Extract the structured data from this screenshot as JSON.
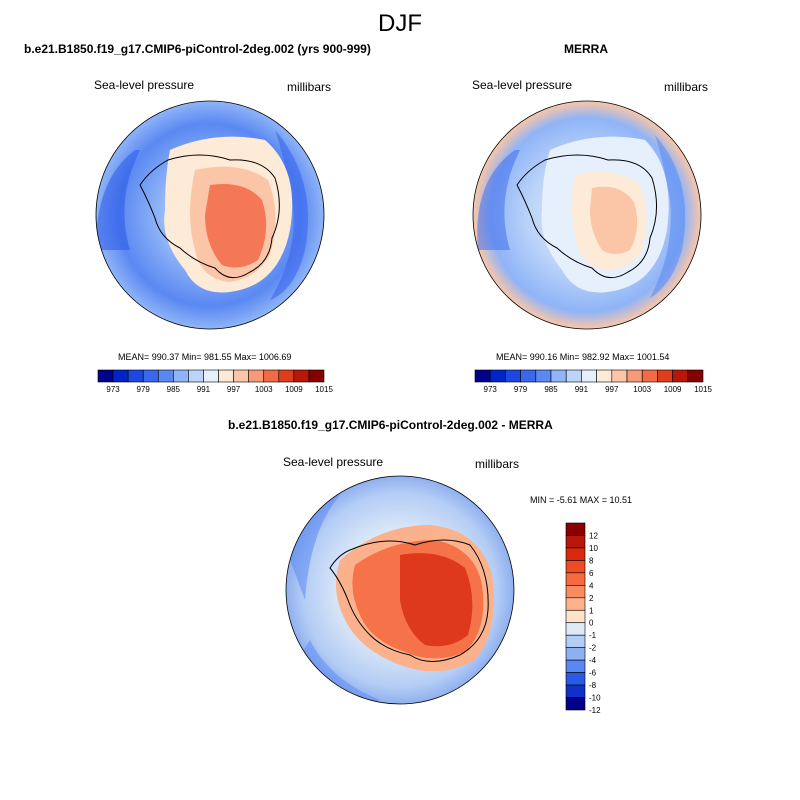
{
  "page": {
    "title": "DJF"
  },
  "chart_data": [
    {
      "type": "heatmap",
      "projection": "south-polar-stereographic",
      "title": "b.e21.B1850.f19_g17.CMIP6-piControl-2deg.002 (yrs 900-999)",
      "left_label": "Sea-level pressure",
      "right_label": "millibars",
      "stats": {
        "text": "MEAN= 990.37  Min= 981.55  Max= 1006.69",
        "mean": 990.37,
        "min": 981.55,
        "max": 1006.69
      },
      "colorbar": {
        "orientation": "horizontal",
        "tick_labels": [
          "973",
          "979",
          "985",
          "991",
          "997",
          "1003",
          "1009",
          "1015"
        ],
        "colors": [
          "#00008b",
          "#0024c8",
          "#1a48e0",
          "#3a68ec",
          "#5a88f2",
          "#8fb4f7",
          "#bcd4f8",
          "#e6f0fc",
          "#fdebd8",
          "#fbc6a8",
          "#f89a78",
          "#f26a48",
          "#dd3d1c",
          "#b71808",
          "#850000"
        ]
      }
    },
    {
      "type": "heatmap",
      "projection": "south-polar-stereographic",
      "title": "MERRA",
      "left_label": "Sea-level pressure",
      "right_label": "millibars",
      "stats": {
        "text": "MEAN= 990.16  Min= 982.92  Max= 1001.54",
        "mean": 990.16,
        "min": 982.92,
        "max": 1001.54
      },
      "colorbar": {
        "orientation": "horizontal",
        "tick_labels": [
          "973",
          "979",
          "985",
          "991",
          "997",
          "1003",
          "1009",
          "1015"
        ],
        "colors": [
          "#00008b",
          "#0024c8",
          "#1a48e0",
          "#3a68ec",
          "#5a88f2",
          "#8fb4f7",
          "#bcd4f8",
          "#e6f0fc",
          "#fdebd8",
          "#fbc6a8",
          "#f89a78",
          "#f26a48",
          "#dd3d1c",
          "#b71808",
          "#850000"
        ]
      }
    },
    {
      "type": "heatmap",
      "projection": "south-polar-stereographic",
      "title": "b.e21.B1850.f19_g17.CMIP6-piControl-2deg.002 - MERRA",
      "left_label": "Sea-level pressure",
      "right_label": "millibars",
      "stats": {
        "text": "MIN =  -5.61 MAX =  10.51",
        "min": -5.61,
        "max": 10.51
      },
      "colorbar": {
        "orientation": "vertical",
        "tick_labels": [
          "12",
          "10",
          "8",
          "6",
          "4",
          "2",
          "1",
          "0",
          "-1",
          "-2",
          "-4",
          "-6",
          "-8",
          "-10",
          "-12"
        ],
        "colors": [
          "#8b0000",
          "#b71808",
          "#d92a10",
          "#ef4a22",
          "#f56a40",
          "#f88c60",
          "#fbb28c",
          "#fde2cc",
          "#dde9f8",
          "#b4cdf5",
          "#8fb0f0",
          "#5a88f2",
          "#2a5ae6",
          "#1030c8",
          "#00008b"
        ]
      }
    }
  ]
}
